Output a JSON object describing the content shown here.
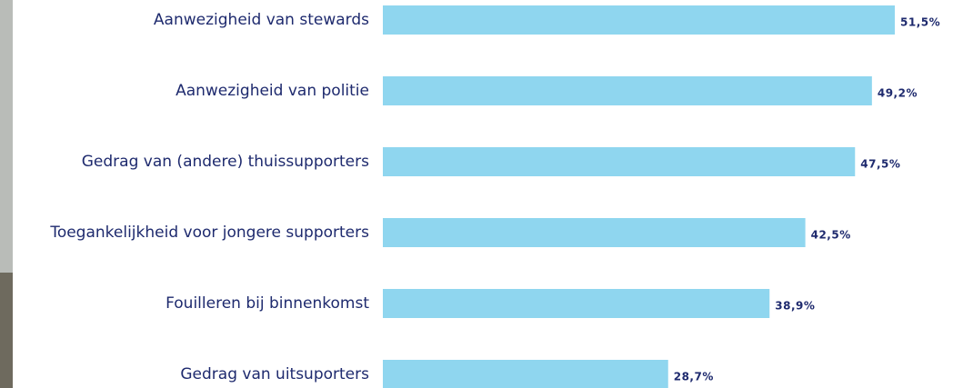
{
  "chart_data": {
    "type": "bar",
    "categories": [
      "Aanwezigheid van stewards",
      "Aanwezigheid van politie",
      "Gedrag van (andere) thuissupporters",
      "Toegankelijkheid voor jongere supporters",
      "Fouilleren bij binnenkomst",
      "Gedrag van uitsuporters"
    ],
    "values": [
      51.5,
      49.2,
      47.5,
      42.5,
      38.9,
      28.7
    ],
    "value_labels": [
      "51,5%",
      "49,2%",
      "47,5%",
      "42,5%",
      "38,9%",
      "28,7%"
    ],
    "color": "#8fd6ef"
  }
}
